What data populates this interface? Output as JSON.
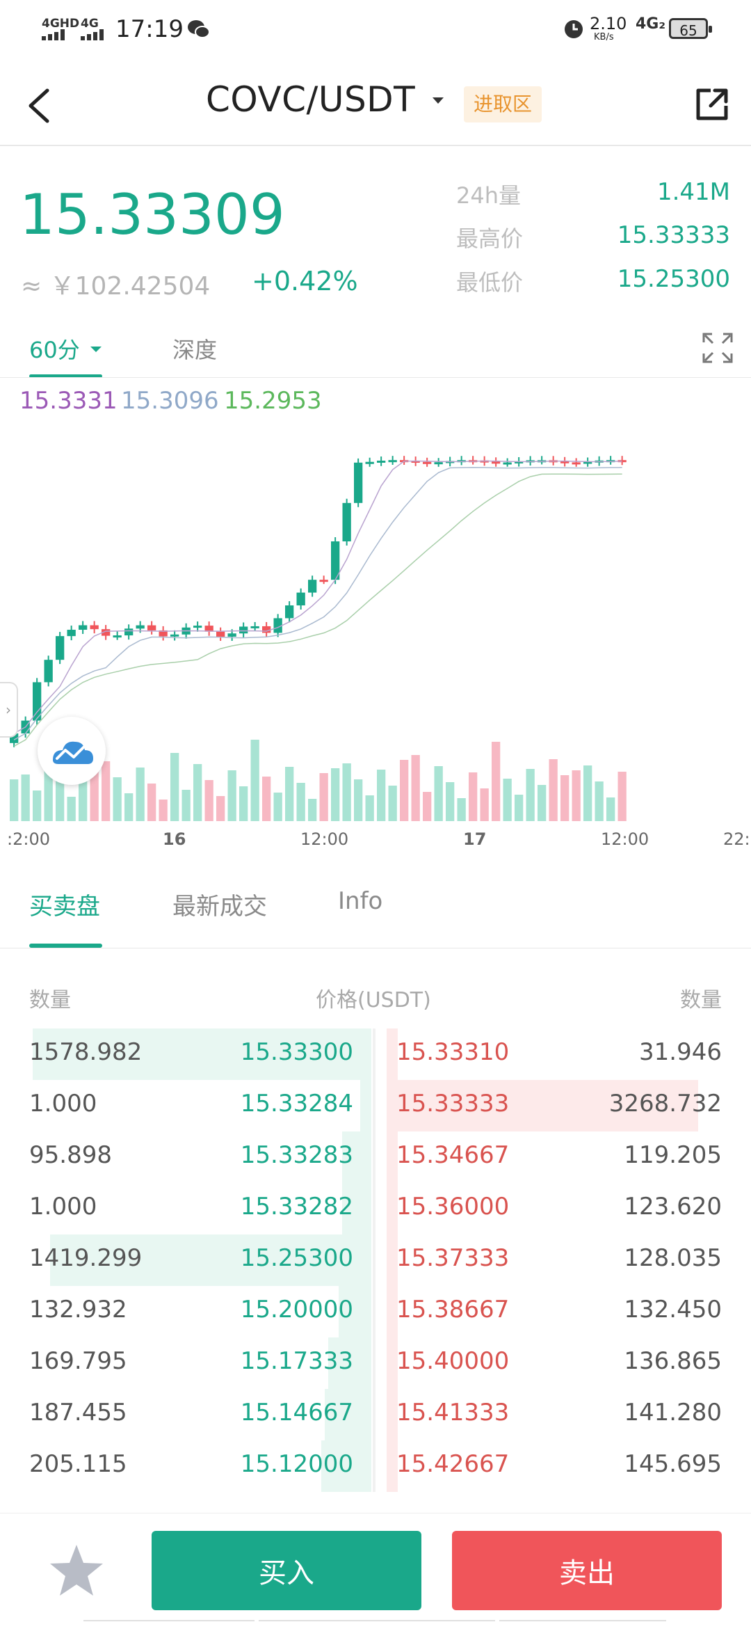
{
  "status_bar": {
    "net1": "4GHD",
    "net2": "4G",
    "time": "17:19",
    "speed_value": "2.10",
    "speed_unit": "KB/s",
    "net3": "4G₂",
    "battery": "65"
  },
  "header": {
    "pair": "COVC/USDT",
    "zone_tag": "进取区"
  },
  "ticker": {
    "last_price": "15.33309",
    "cny_approx": "≈ ￥102.42504",
    "change": "+0.42%",
    "stats": [
      {
        "label": "24h量",
        "value": "1.41M"
      },
      {
        "label": "最高价",
        "value": "15.33333"
      },
      {
        "label": "最低价",
        "value": "15.25300"
      }
    ]
  },
  "chart_tabs": {
    "interval": "60分",
    "depth": "深度"
  },
  "chart_data": {
    "type": "candlestick",
    "ma_values": [
      {
        "value": "15.3331",
        "color": "#9b59b6"
      },
      {
        "value": "15.3096",
        "color": "#8fa8c8"
      },
      {
        "value": "15.2953",
        "color": "#5cb85c"
      }
    ],
    "x_ticks": [
      ":2:00",
      "16",
      "12:00",
      "17",
      "12:00",
      "22:0"
    ],
    "ylim": [
      15.19,
      15.34
    ]
  },
  "book_tabs": {
    "orderbook": "买卖盘",
    "trades": "最新成交",
    "info": "Info"
  },
  "orderbook": {
    "head_qty": "数量",
    "head_price": "价格(USDT)",
    "head_qty2": "数量",
    "bids": [
      {
        "qty": "1578.982",
        "price": "15.33300",
        "depth": 0.95
      },
      {
        "qty": "1.000",
        "price": "15.33284",
        "depth": 0.0
      },
      {
        "qty": "95.898",
        "price": "15.33283",
        "depth": 0.06
      },
      {
        "qty": "1.000",
        "price": "15.33282",
        "depth": 0.06
      },
      {
        "qty": "1419.299",
        "price": "15.25300",
        "depth": 0.9
      },
      {
        "qty": "132.932",
        "price": "15.20000",
        "depth": 0.07
      },
      {
        "qty": "169.795",
        "price": "15.17333",
        "depth": 0.1
      },
      {
        "qty": "187.455",
        "price": "15.14667",
        "depth": 0.11
      },
      {
        "qty": "205.115",
        "price": "15.12000",
        "depth": 0.12
      }
    ],
    "asks": [
      {
        "price": "15.33310",
        "qty": "31.946",
        "depth": 0.0
      },
      {
        "price": "15.33333",
        "qty": "3268.732",
        "depth": 0.97
      },
      {
        "price": "15.34667",
        "qty": "119.205",
        "depth": 0.03
      },
      {
        "price": "15.36000",
        "qty": "123.620",
        "depth": 0.03
      },
      {
        "price": "15.37333",
        "qty": "128.035",
        "depth": 0.03
      },
      {
        "price": "15.38667",
        "qty": "132.450",
        "depth": 0.03
      },
      {
        "price": "15.40000",
        "qty": "136.865",
        "depth": 0.03
      },
      {
        "price": "15.41333",
        "qty": "141.280",
        "depth": 0.03
      },
      {
        "price": "15.42667",
        "qty": "145.695",
        "depth": 0.03
      }
    ]
  },
  "actions": {
    "buy": "买入",
    "sell": "卖出"
  },
  "colors": {
    "up": "#1aa88a",
    "down": "#f0555a",
    "up_light": "#a8e3d3",
    "down_light": "#f7b8c3"
  }
}
